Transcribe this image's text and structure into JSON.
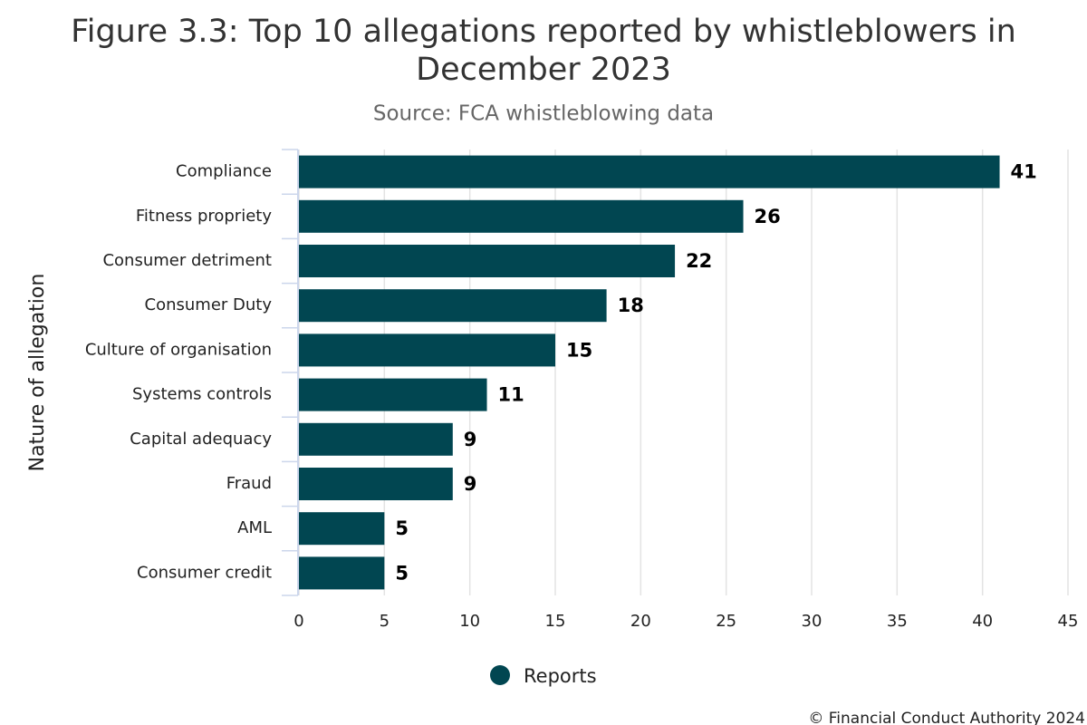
{
  "chart_data": {
    "type": "bar",
    "orientation": "horizontal",
    "title": "Figure 3.3: Top 10 allegations reported by whistleblowers in December 2023",
    "subtitle": "Source: FCA whistleblowing data",
    "y_label": "Nature of allegation",
    "categories": [
      "Compliance",
      "Fitness propriety",
      "Consumer detriment",
      "Consumer Duty",
      "Culture of organisation",
      "Systems controls",
      "Capital adequacy",
      "Fraud",
      "AML",
      "Consumer credit"
    ],
    "series": [
      {
        "name": "Reports",
        "color": "#014651",
        "values": [
          41,
          26,
          22,
          18,
          15,
          11,
          9,
          9,
          5,
          5
        ]
      }
    ],
    "xlim": [
      0,
      45
    ],
    "xticks": [
      0,
      5,
      10,
      15,
      20,
      25,
      30,
      35,
      40,
      45
    ],
    "grid": true,
    "legend": "bottom",
    "footer": "© Financial Conduct Authority 2024"
  }
}
